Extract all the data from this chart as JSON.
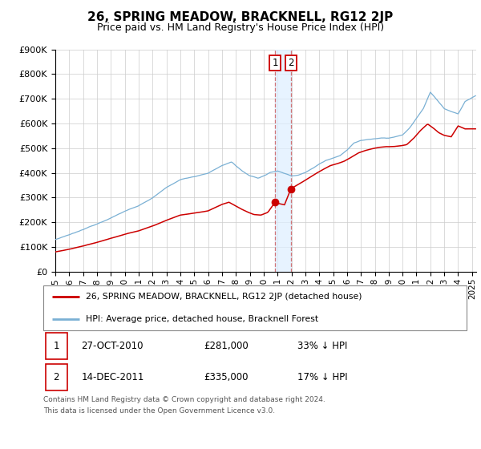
{
  "title": "26, SPRING MEADOW, BRACKNELL, RG12 2JP",
  "subtitle": "Price paid vs. HM Land Registry's House Price Index (HPI)",
  "ylim": [
    0,
    900000
  ],
  "xlim_start": 1995.0,
  "xlim_end": 2025.3,
  "ytick_labels": [
    "£0",
    "£100K",
    "£200K",
    "£300K",
    "£400K",
    "£500K",
    "£600K",
    "£700K",
    "£800K",
    "£900K"
  ],
  "ytick_values": [
    0,
    100000,
    200000,
    300000,
    400000,
    500000,
    600000,
    700000,
    800000,
    900000
  ],
  "xtick_years": [
    1995,
    1996,
    1997,
    1998,
    1999,
    2000,
    2001,
    2002,
    2003,
    2004,
    2005,
    2006,
    2007,
    2008,
    2009,
    2010,
    2011,
    2012,
    2013,
    2014,
    2015,
    2016,
    2017,
    2018,
    2019,
    2020,
    2021,
    2022,
    2023,
    2024,
    2025
  ],
  "red_line_color": "#cc0000",
  "blue_line_color": "#7ab0d4",
  "marker_color": "#cc0000",
  "sale1_x": 2010.82,
  "sale1_y": 281000,
  "sale2_x": 2011.96,
  "sale2_y": 335000,
  "shade_color": "#ddeeff",
  "vline_color": "#cc5555",
  "label1_edge": "#cc0000",
  "label2_edge": "#cc0000",
  "legend_label_red": "26, SPRING MEADOW, BRACKNELL, RG12 2JP (detached house)",
  "legend_label_blue": "HPI: Average price, detached house, Bracknell Forest",
  "row1_num": "1",
  "row1_date": "27-OCT-2010",
  "row1_price": "£281,000",
  "row1_pct": "33% ↓ HPI",
  "row2_num": "2",
  "row2_date": "14-DEC-2011",
  "row2_price": "£335,000",
  "row2_pct": "17% ↓ HPI",
  "footnote1": "Contains HM Land Registry data © Crown copyright and database right 2024.",
  "footnote2": "This data is licensed under the Open Government Licence v3.0.",
  "grid_color": "#cccccc",
  "title_fontsize": 11,
  "subtitle_fontsize": 9
}
